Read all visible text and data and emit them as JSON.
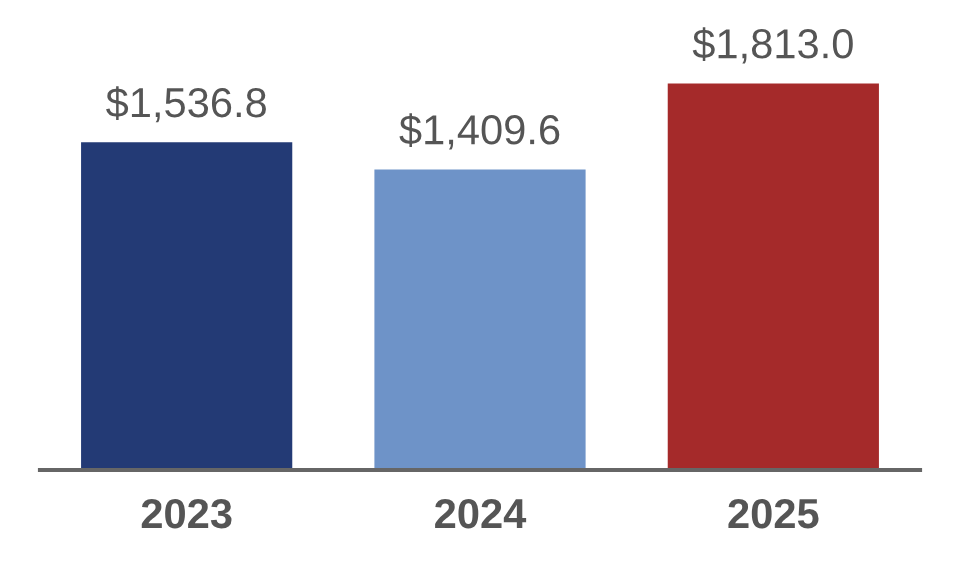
{
  "chart_data": {
    "type": "bar",
    "categories": [
      "2023",
      "2024",
      "2025"
    ],
    "values": [
      1536.8,
      1409.6,
      1813.0
    ],
    "colors": [
      "#233a75",
      "#6e93c8",
      "#a52a2a"
    ],
    "value_labels": [
      "$1,536.8",
      "$1,409.6",
      "$1,813.0"
    ],
    "grid": false,
    "legend": false
  }
}
